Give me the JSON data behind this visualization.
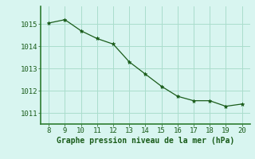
{
  "x": [
    8,
    9,
    10,
    11,
    12,
    13,
    14,
    15,
    16,
    17,
    18,
    19,
    20
  ],
  "y": [
    1015.05,
    1015.2,
    1014.7,
    1014.35,
    1014.1,
    1013.3,
    1012.75,
    1012.2,
    1011.75,
    1011.55,
    1011.55,
    1011.3,
    1011.4
  ],
  "line_color": "#1a5c1a",
  "marker": "*",
  "marker_size": 3.5,
  "bg_color": "#d8f5f0",
  "grid_color": "#aaddcc",
  "border_color": "#2e7d32",
  "xlabel": "Graphe pression niveau de la mer (hPa)",
  "xlabel_color": "#1a5c1a",
  "xlabel_fontsize": 7,
  "tick_color": "#1a5c1a",
  "tick_fontsize": 6.5,
  "xlim": [
    7.5,
    20.5
  ],
  "ylim": [
    1010.5,
    1015.8
  ],
  "yticks": [
    1011,
    1012,
    1013,
    1014,
    1015
  ],
  "xticks": [
    8,
    9,
    10,
    11,
    12,
    13,
    14,
    15,
    16,
    17,
    18,
    19,
    20
  ]
}
